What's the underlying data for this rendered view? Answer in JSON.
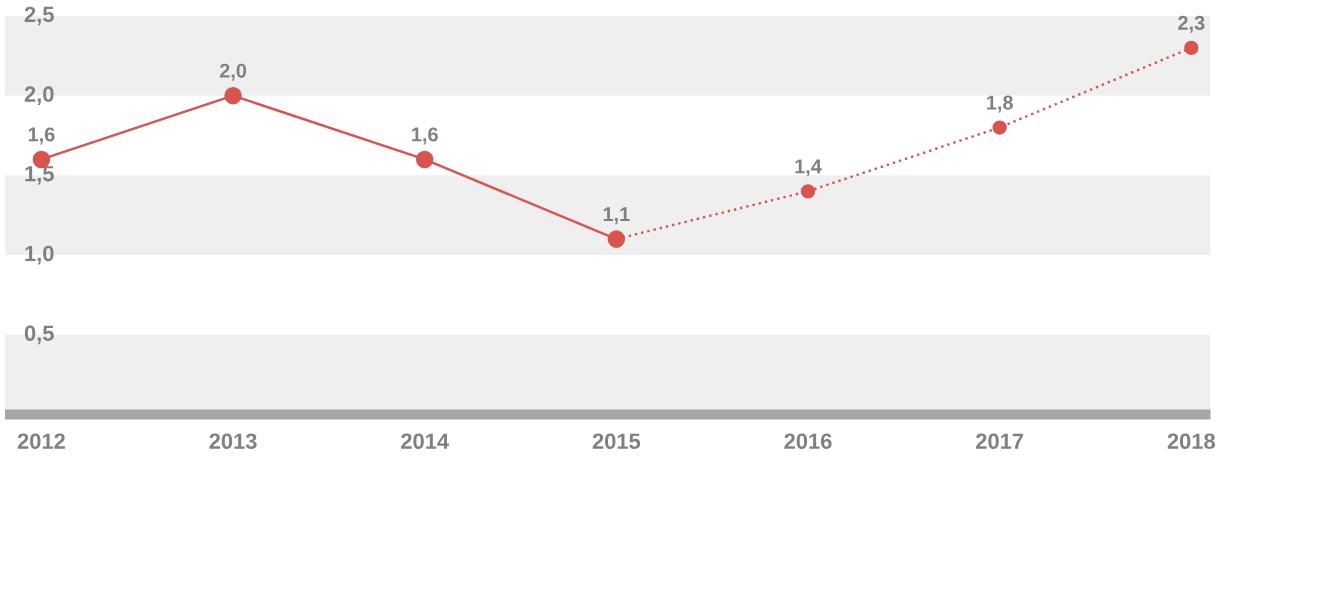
{
  "chart_data": {
    "type": "line",
    "categories": [
      "2012",
      "2013",
      "2014",
      "2015",
      "2016",
      "2017",
      "2018"
    ],
    "series": [
      {
        "color": "#d9534f",
        "line_style": "solid",
        "values": [
          1.6,
          2.0,
          1.6,
          1.1,
          null,
          null,
          null
        ],
        "value_labels": [
          "1,6",
          "2,0",
          "1,6",
          "1,1",
          null,
          null,
          null
        ]
      },
      {
        "color": "#d9534f",
        "line_style": "dotted",
        "values": [
          null,
          null,
          null,
          1.1,
          1.4,
          1.8,
          2.3
        ],
        "value_labels": [
          null,
          null,
          null,
          null,
          "1,4",
          "1,8",
          "2,3"
        ]
      }
    ],
    "marker": "circle",
    "ylim": [
      0,
      2.5
    ],
    "yticks": [
      {
        "value": 0.5,
        "label": "0,5"
      },
      {
        "value": 1.0,
        "label": "1,0"
      },
      {
        "value": 1.5,
        "label": "1,5"
      },
      {
        "value": 2.0,
        "label": "2,0"
      },
      {
        "value": 2.5,
        "label": "2,5"
      }
    ],
    "bands": [
      {
        "axis": "y",
        "from": 0,
        "to": 0.5,
        "color": "#efefef"
      },
      {
        "axis": "y",
        "from": 1.0,
        "to": 1.5,
        "color": "#efefef"
      },
      {
        "axis": "y",
        "from": 2.0,
        "to": 2.5,
        "color": "#efefef"
      }
    ]
  }
}
